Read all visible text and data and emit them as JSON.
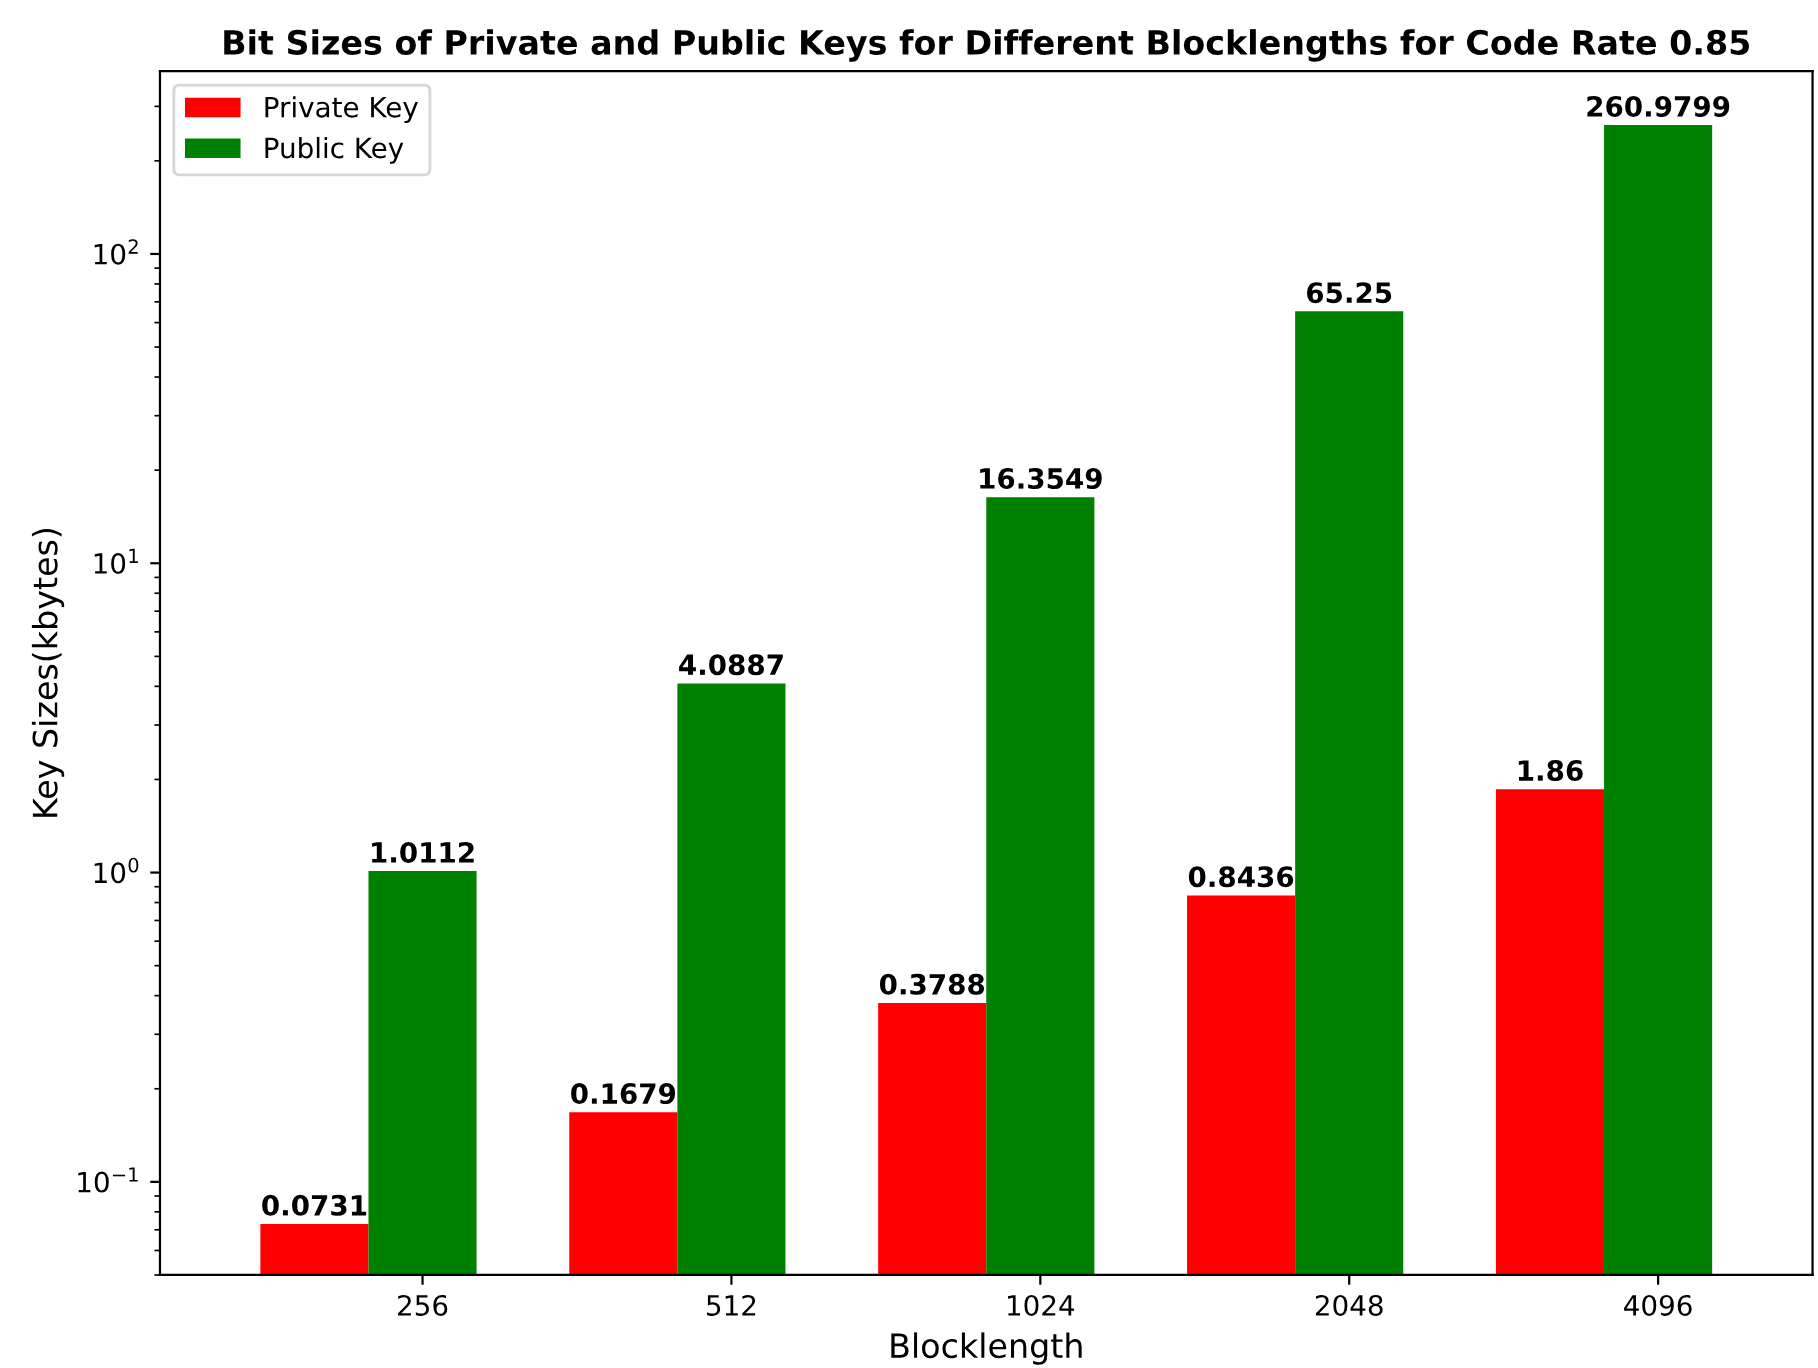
{
  "chart_data": {
    "type": "bar",
    "title": "Bit Sizes of Private and Public Keys for Different Blocklengths for Code Rate 0.85",
    "xlabel": "Blocklength",
    "ylabel": "Key Sizes(kbytes)",
    "categories": [
      "256",
      "512",
      "1024",
      "2048",
      "4096"
    ],
    "series": [
      {
        "name": "Private Key",
        "color": "#ff0000",
        "values": [
          0.0731,
          0.1679,
          0.3788,
          0.8436,
          1.86
        ]
      },
      {
        "name": "Public Key",
        "color": "#008000",
        "values": [
          1.0112,
          4.0887,
          16.3549,
          65.25,
          260.9799
        ]
      }
    ],
    "log": true,
    "ylim": [
      0.05,
      390
    ],
    "yticks": [
      {
        "value": 0.1,
        "label": "10$^{−1}$"
      },
      {
        "value": 1,
        "label": "10$^{0}$"
      },
      {
        "value": 10,
        "label": "10$^{1}$"
      },
      {
        "value": 100,
        "label": "10$^{2}$"
      }
    ],
    "data_labels": true,
    "legend": "top left",
    "grid": false
  }
}
